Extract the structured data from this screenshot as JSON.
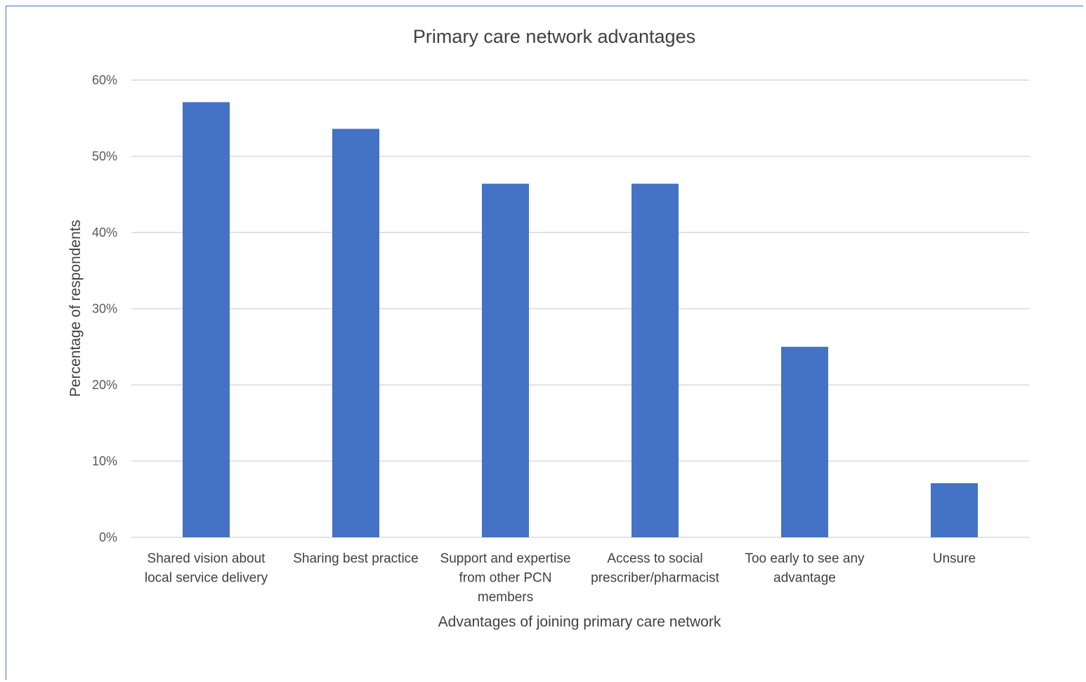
{
  "chart_data": {
    "type": "bar",
    "title": "Primary care network advantages",
    "xlabel": "Advantages of joining primary care network",
    "ylabel": "Percentage of respondents",
    "categories": [
      [
        "Shared vision about",
        "local service delivery"
      ],
      [
        "Sharing best practice"
      ],
      [
        "Support and expertise",
        "from other PCN",
        "members"
      ],
      [
        "Access to social",
        "prescriber/pharmacist"
      ],
      [
        "Too early to see any",
        "advantage"
      ],
      [
        "Unsure"
      ]
    ],
    "values": [
      57.1,
      53.6,
      46.4,
      46.4,
      25.0,
      7.1
    ],
    "ylim": [
      0,
      60
    ],
    "yticks": [
      "0%",
      "10%",
      "20%",
      "30%",
      "40%",
      "50%",
      "60%"
    ],
    "bar_color": "#4472c4",
    "grid": true,
    "legend": "none"
  }
}
